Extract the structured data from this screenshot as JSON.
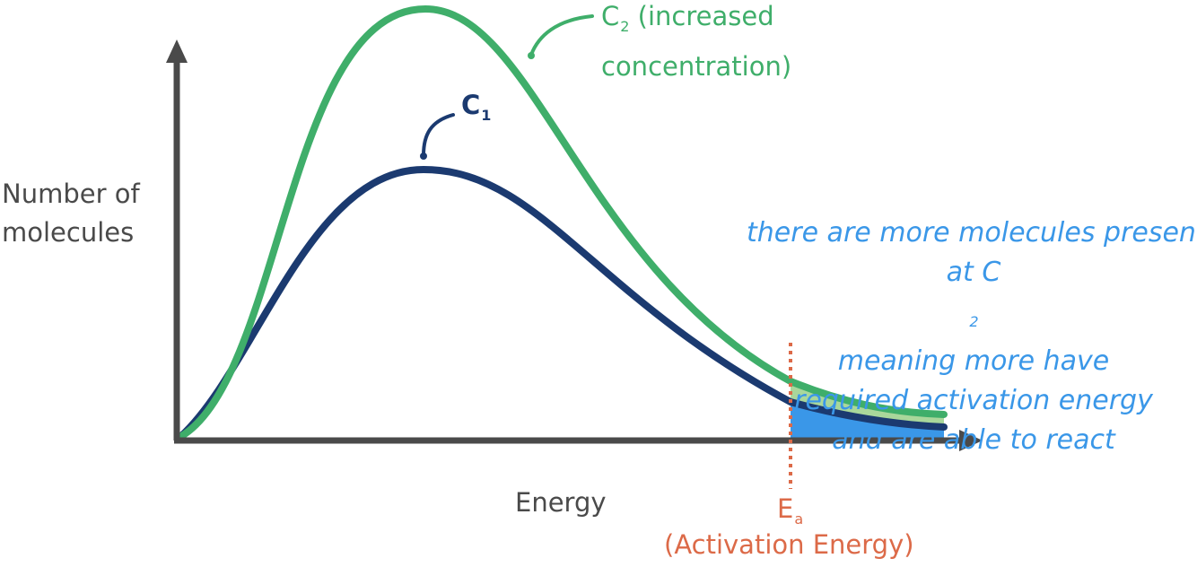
{
  "diagram": {
    "type": "maxwell-boltzmann-distribution",
    "y_axis_label_line1": "Number of",
    "y_axis_label_line2": "molecules",
    "x_axis_label": "Energy",
    "curves": [
      {
        "name": "C",
        "subscript": "1",
        "note": ""
      },
      {
        "name": "C",
        "subscript": "2",
        "note_line1": "(increased",
        "note_line2": "concentration)"
      }
    ],
    "activation_energy": {
      "symbol": "E",
      "subscript": "a",
      "description": "(Activation Energy)"
    },
    "annotation": {
      "line1": "there are more molecules present",
      "line2_prefix": "at C",
      "line2_subscript": "2",
      "line2_suffix": " meaning more have",
      "line3": "required activation energy",
      "line4": "and are able to react"
    },
    "colors": {
      "axis": "#4a4a4a",
      "c1": "#1b3a70",
      "c2": "#3fae6a",
      "c2_fill": "#a9d79b",
      "c1_fill": "#3a97e8",
      "activation": "#dc6a48",
      "annotation": "#3a97e8"
    }
  }
}
